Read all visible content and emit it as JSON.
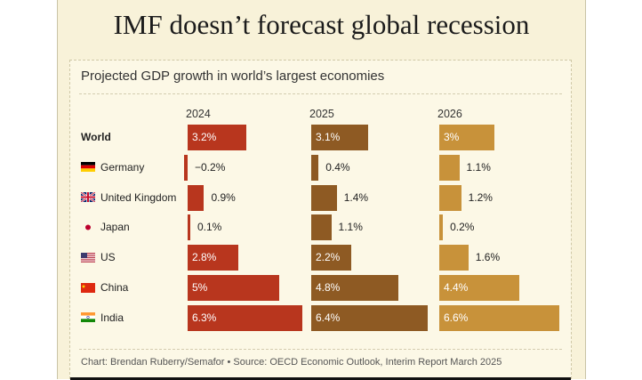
{
  "headline": "IMF doesn’t forecast global recession",
  "chart_data": {
    "type": "bar",
    "title": "Projected GDP growth in world’s largest economies",
    "years": [
      "2024",
      "2025",
      "2026"
    ],
    "colors": {
      "2024": "#b8361e",
      "2025": "#8e5a23",
      "2026": "#c8923a"
    },
    "rows": [
      {
        "label": "World",
        "bold": true,
        "flag": "",
        "values": [
          3.2,
          3.1,
          3.0
        ],
        "labels": [
          "3.2%",
          "3.1%",
          "3%"
        ]
      },
      {
        "label": "Germany",
        "flag": "germany-flag-icon",
        "values": [
          -0.2,
          0.4,
          1.1
        ],
        "labels": [
          "−0.2%",
          "0.4%",
          "1.1%"
        ]
      },
      {
        "label": "United Kingdom",
        "flag": "uk-flag-icon",
        "values": [
          0.9,
          1.4,
          1.2
        ],
        "labels": [
          "0.9%",
          "1.4%",
          "1.2%"
        ]
      },
      {
        "label": "Japan",
        "flag": "japan-flag-icon",
        "values": [
          0.1,
          1.1,
          0.2
        ],
        "labels": [
          "0.1%",
          "1.1%",
          "0.2%"
        ]
      },
      {
        "label": "US",
        "flag": "us-flag-icon",
        "values": [
          2.8,
          2.2,
          1.6
        ],
        "labels": [
          "2.8%",
          "2.2%",
          "1.6%"
        ]
      },
      {
        "label": "China",
        "flag": "china-flag-icon",
        "values": [
          5.0,
          4.8,
          4.4
        ],
        "labels": [
          "5%",
          "4.8%",
          "4.4%"
        ]
      },
      {
        "label": "India",
        "flag": "india-flag-icon",
        "values": [
          6.3,
          6.4,
          6.6
        ],
        "labels": [
          "6.3%",
          "6.4%",
          "6.6%"
        ]
      }
    ]
  },
  "credit": "Chart: Brendan Ruberry/Semafor • Source: OECD Economic Outlook, Interim Report March 2025"
}
